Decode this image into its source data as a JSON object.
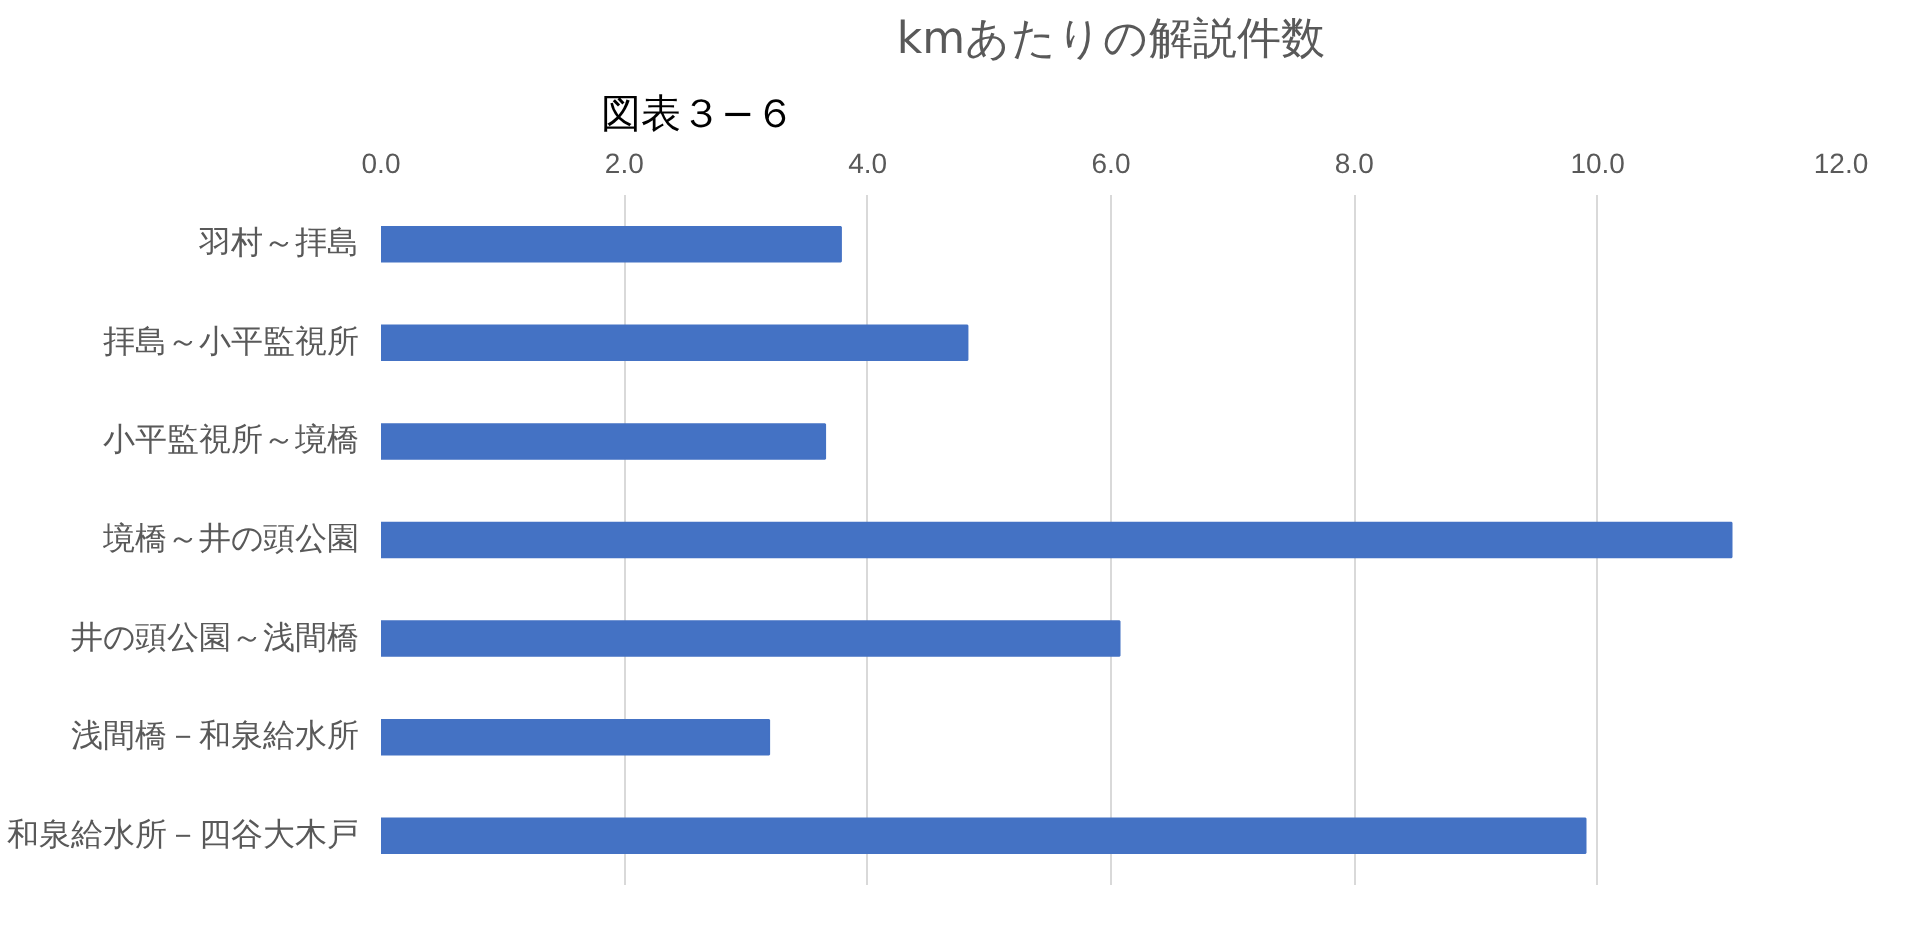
{
  "chart_data": {
    "type": "bar",
    "orientation": "horizontal",
    "title": "kmあたりの解説件数",
    "annotations": [
      "図表３−６"
    ],
    "categories": [
      "羽村～拝島",
      "拝島～小平監視所",
      "小平監視所～境橋",
      "境橋～井の頭公園",
      "井の頭公園～浅間橋",
      "浅間橋－和泉給水所",
      "和泉給水所－四谷大木戸"
    ],
    "values": [
      3.78,
      4.82,
      3.65,
      11.1,
      6.07,
      3.19,
      9.9
    ],
    "color": "#4472c4",
    "xlim": [
      0,
      12
    ],
    "xticks": [
      {
        "value": 0,
        "label": "0.0"
      },
      {
        "value": 2,
        "label": "2.0"
      },
      {
        "value": 4,
        "label": "4.0"
      },
      {
        "value": 6,
        "label": "6.0"
      },
      {
        "value": 8,
        "label": "8.0"
      },
      {
        "value": 10,
        "label": "10.0"
      },
      {
        "value": 12,
        "label": "12.0"
      }
    ],
    "grid": "x"
  }
}
